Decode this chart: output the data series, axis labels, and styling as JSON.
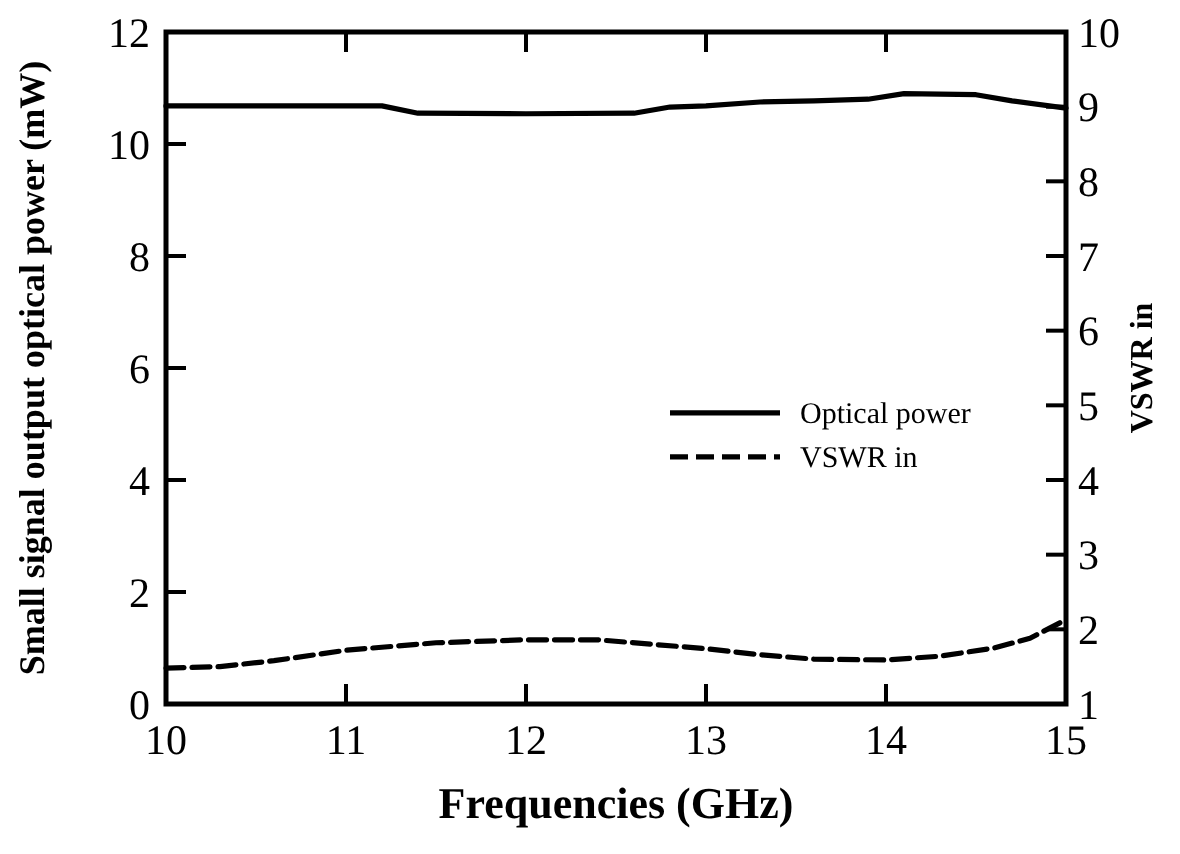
{
  "chart_data": {
    "type": "line",
    "xlabel": "Frequencies  (GHz)",
    "ylabel": "Small signal output optical power (mW)",
    "y2label": "VSWR in",
    "xlim": [
      10,
      15
    ],
    "xticks": [
      10,
      11,
      12,
      13,
      14,
      15
    ],
    "ylim": [
      0,
      12
    ],
    "yticks": [
      0,
      2,
      4,
      6,
      8,
      10,
      12
    ],
    "y2lim": [
      1,
      10
    ],
    "y2ticks": [
      1,
      2,
      3,
      4,
      5,
      6,
      7,
      8,
      9,
      10
    ],
    "legend": "right",
    "grid": false,
    "series": [
      {
        "name": "Optical power",
        "color": "#000000",
        "line_style": "solid",
        "x": [
          10,
          10.5,
          11,
          11.2,
          11.4,
          12,
          12.6,
          12.8,
          13,
          13.3,
          13.6,
          13.9,
          14.1,
          14.5,
          14.7,
          15
        ],
        "values": [
          10.68,
          10.68,
          10.68,
          10.68,
          10.55,
          10.54,
          10.55,
          10.66,
          10.68,
          10.75,
          10.77,
          10.8,
          10.9,
          10.88,
          10.77,
          10.64
        ]
      },
      {
        "name": "VSWR in",
        "color": "#000000",
        "line_style": "dashed",
        "axis": "y2",
        "x": [
          10,
          10.3,
          10.6,
          11,
          11.5,
          12,
          12.4,
          12.7,
          13,
          13.3,
          13.6,
          14,
          14.3,
          14.6,
          14.8,
          15
        ],
        "values": [
          1.48,
          1.5,
          1.58,
          1.72,
          1.82,
          1.86,
          1.86,
          1.8,
          1.74,
          1.66,
          1.6,
          1.59,
          1.64,
          1.75,
          1.88,
          2.13
        ]
      }
    ]
  }
}
